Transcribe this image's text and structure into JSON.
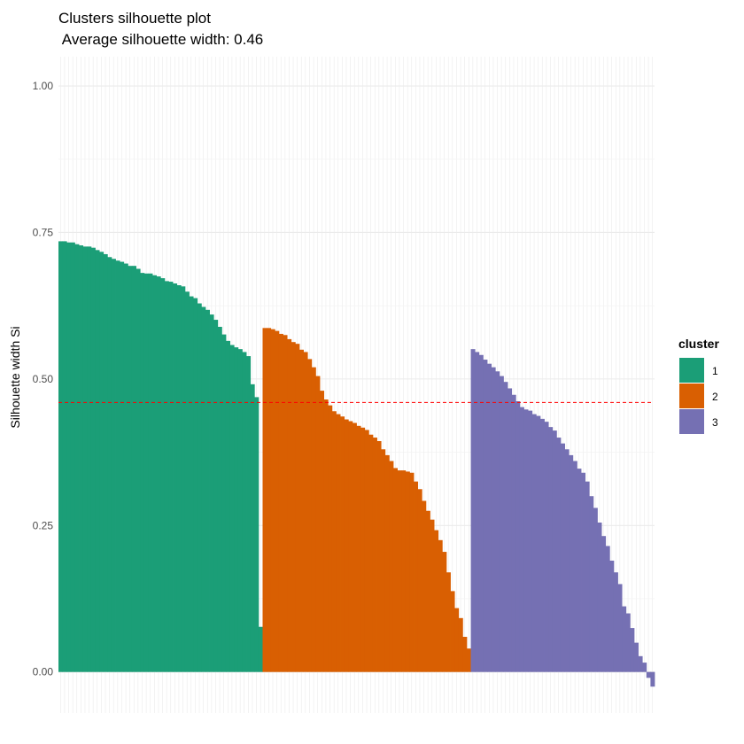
{
  "chart_data": {
    "type": "bar",
    "title": "Clusters silhouette plot",
    "subtitle": " Average silhouette width: 0.46",
    "ylabel": "Silhouette width Si",
    "ylim": [
      -0.07,
      1.05
    ],
    "yticks": [
      {
        "value": 0.0,
        "label": "0.00"
      },
      {
        "value": 0.25,
        "label": "0.25"
      },
      {
        "value": 0.5,
        "label": "0.50"
      },
      {
        "value": 0.75,
        "label": "0.75"
      },
      {
        "value": 1.0,
        "label": "1.00"
      }
    ],
    "average_line": 0.46,
    "average_line_color": "#ff0000",
    "legend": {
      "title": "cluster",
      "position": "right",
      "items": [
        "1",
        "2",
        "3"
      ]
    },
    "series": [
      {
        "name": "1",
        "color": "#1b9e77",
        "values": [
          0.735,
          0.735,
          0.733,
          0.733,
          0.73,
          0.728,
          0.726,
          0.726,
          0.724,
          0.72,
          0.717,
          0.713,
          0.708,
          0.705,
          0.702,
          0.7,
          0.697,
          0.693,
          0.693,
          0.688,
          0.681,
          0.68,
          0.68,
          0.677,
          0.675,
          0.672,
          0.667,
          0.666,
          0.663,
          0.66,
          0.658,
          0.649,
          0.641,
          0.638,
          0.629,
          0.623,
          0.618,
          0.61,
          0.601,
          0.589,
          0.576,
          0.565,
          0.558,
          0.554,
          0.551,
          0.546,
          0.539,
          0.491,
          0.469,
          0.077
        ]
      },
      {
        "name": "2",
        "color": "#d95f02",
        "values": [
          0.587,
          0.587,
          0.585,
          0.582,
          0.577,
          0.575,
          0.568,
          0.563,
          0.56,
          0.55,
          0.546,
          0.534,
          0.52,
          0.505,
          0.48,
          0.465,
          0.455,
          0.445,
          0.44,
          0.436,
          0.431,
          0.428,
          0.425,
          0.42,
          0.417,
          0.413,
          0.405,
          0.4,
          0.394,
          0.38,
          0.37,
          0.36,
          0.348,
          0.344,
          0.344,
          0.342,
          0.34,
          0.325,
          0.312,
          0.292,
          0.275,
          0.26,
          0.242,
          0.225,
          0.205,
          0.17,
          0.138,
          0.109,
          0.092,
          0.06,
          0.04
        ]
      },
      {
        "name": "3",
        "color": "#7570b3",
        "values": [
          0.551,
          0.546,
          0.541,
          0.533,
          0.526,
          0.52,
          0.513,
          0.505,
          0.495,
          0.484,
          0.473,
          0.462,
          0.452,
          0.448,
          0.446,
          0.44,
          0.437,
          0.432,
          0.427,
          0.418,
          0.412,
          0.4,
          0.39,
          0.38,
          0.37,
          0.36,
          0.347,
          0.34,
          0.325,
          0.3,
          0.28,
          0.255,
          0.232,
          0.215,
          0.19,
          0.17,
          0.15,
          0.112,
          0.1,
          0.075,
          0.05,
          0.027,
          0.016,
          -0.01,
          -0.025
        ]
      }
    ]
  }
}
